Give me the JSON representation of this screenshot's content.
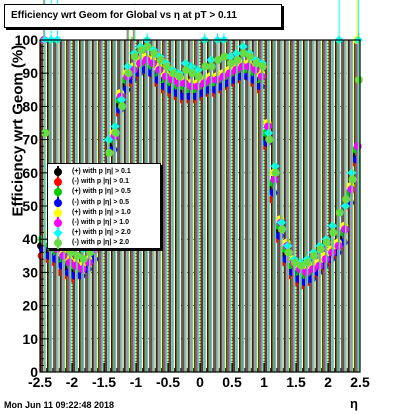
{
  "title": "Efficiency wrt Geom for Global vs   η at pT > 0.11",
  "footer": "Mon Jun 11 09:22:48 2018",
  "chart_data": {
    "type": "scatter",
    "title": "Efficiency wrt Geom for Global vs   η at pT > 0.11",
    "xlabel": "η",
    "ylabel": "Efficiency wrt Geom (%)",
    "xlim": [
      -2.5,
      2.5
    ],
    "ylim": [
      0,
      100
    ],
    "grid": true,
    "legend_position": "left-middle",
    "x_ticks": [
      "-2.5",
      "-2",
      "-1.5",
      "-1",
      "-0.5",
      "0",
      "0.5",
      "1",
      "1.5",
      "2",
      "2.5"
    ],
    "y_ticks": [
      "0",
      "10",
      "20",
      "30",
      "40",
      "50",
      "60",
      "70",
      "80",
      "90",
      "100"
    ],
    "x": [
      -2.45,
      -2.35,
      -2.25,
      -2.15,
      -2.05,
      -1.95,
      -1.85,
      -1.75,
      -1.65,
      -1.55,
      -1.45,
      -1.35,
      -1.25,
      -1.15,
      -1.05,
      -0.95,
      -0.85,
      -0.75,
      -0.65,
      -0.55,
      -0.45,
      -0.35,
      -0.25,
      -0.15,
      -0.05,
      0.05,
      0.15,
      0.25,
      0.35,
      0.45,
      0.55,
      0.65,
      0.75,
      0.85,
      0.95,
      1.05,
      1.15,
      1.25,
      1.35,
      1.45,
      1.55,
      1.65,
      1.75,
      1.85,
      1.95,
      2.05,
      2.15,
      2.25,
      2.35,
      2.45
    ],
    "series": [
      {
        "name": "(+) with p  |η| > 0.1",
        "marker": "black-circle",
        "values": [
          38,
          36,
          35,
          33,
          31,
          30,
          30,
          32,
          35,
          42,
          55,
          68,
          80,
          86,
          88,
          90,
          92,
          91,
          88,
          86,
          85,
          84,
          84,
          83,
          83,
          84,
          85,
          85,
          86,
          87,
          88,
          89,
          90,
          88,
          86,
          70,
          55,
          42,
          35,
          30,
          28,
          27,
          28,
          30,
          32,
          34,
          36,
          40,
          52,
          65
        ]
      },
      {
        "name": "(-) with p  |η| > 0.1",
        "marker": "red-circle",
        "values": [
          35,
          34,
          33,
          30,
          29,
          28,
          29,
          31,
          34,
          40,
          54,
          66,
          78,
          84,
          87,
          89,
          91,
          90,
          87,
          85,
          84,
          83,
          82,
          82,
          82,
          83,
          84,
          84,
          85,
          86,
          87,
          88,
          89,
          87,
          85,
          68,
          52,
          40,
          33,
          29,
          27,
          26,
          27,
          29,
          31,
          33,
          35,
          38,
          50,
          63
        ]
      },
      {
        "name": "(+) with p  |η| > 0.5",
        "marker": "green-circle",
        "values": [
          40,
          38,
          36,
          34,
          33,
          32,
          31,
          33,
          36,
          44,
          57,
          70,
          82,
          88,
          90,
          92,
          93,
          92,
          90,
          88,
          87,
          86,
          86,
          85,
          85,
          86,
          87,
          87,
          88,
          89,
          90,
          91,
          91,
          90,
          88,
          72,
          57,
          44,
          37,
          32,
          30,
          29,
          30,
          31,
          33,
          35,
          37,
          42,
          54,
          67
        ]
      },
      {
        "name": "(-) with p  |η| > 0.5",
        "marker": "blue-circle",
        "values": [
          37,
          35,
          34,
          32,
          30,
          29,
          29,
          31,
          34,
          41,
          54,
          67,
          79,
          85,
          88,
          90,
          91,
          90,
          88,
          86,
          85,
          84,
          83,
          83,
          83,
          84,
          85,
          85,
          86,
          87,
          88,
          89,
          89,
          88,
          86,
          69,
          54,
          41,
          34,
          30,
          28,
          27,
          28,
          30,
          32,
          34,
          36,
          39,
          51,
          64
        ]
      },
      {
        "name": "(+) with p  |η| > 1.0",
        "marker": "yellow-circle",
        "values": [
          100,
          42,
          38,
          36,
          34,
          33,
          32,
          34,
          38,
          46,
          60,
          72,
          84,
          90,
          92,
          94,
          95,
          94,
          92,
          90,
          89,
          88,
          88,
          87,
          87,
          88,
          89,
          89,
          90,
          91,
          92,
          93,
          93,
          92,
          90,
          75,
          60,
          46,
          39,
          34,
          32,
          31,
          32,
          33,
          35,
          37,
          39,
          44,
          56,
          100
        ]
      },
      {
        "name": "(-) with p  |η| > 1.0",
        "marker": "magenta-circle",
        "values": [
          100,
          40,
          37,
          35,
          33,
          32,
          31,
          33,
          37,
          45,
          58,
          71,
          83,
          89,
          91,
          93,
          94,
          93,
          91,
          89,
          88,
          87,
          87,
          86,
          86,
          87,
          88,
          88,
          89,
          90,
          91,
          92,
          92,
          91,
          89,
          74,
          58,
          45,
          38,
          33,
          31,
          30,
          31,
          32,
          34,
          36,
          38,
          43,
          55,
          68
        ]
      },
      {
        "name": "(+) with p  |η| > 2.0",
        "marker": "cyan-diamond",
        "values": [
          100,
          100,
          100,
          44,
          40,
          38,
          37,
          40,
          46,
          62,
          70,
          74,
          82,
          92,
          96,
          98,
          100,
          97,
          95,
          93,
          91,
          90,
          93,
          92,
          91,
          100,
          94,
          100,
          100,
          95,
          96,
          98,
          96,
          94,
          93,
          72,
          62,
          45,
          38,
          34,
          33,
          34,
          36,
          38,
          40,
          44,
          100,
          50,
          60,
          100
        ]
      },
      {
        "name": "(-) with p  |η| > 2.0",
        "marker": "lightgreen-circle",
        "values": [
          72,
          45,
          40,
          38,
          36,
          35,
          34,
          36,
          42,
          58,
          66,
          72,
          80,
          90,
          95,
          97,
          98,
          96,
          94,
          92,
          90,
          89,
          91,
          90,
          89,
          92,
          92,
          94,
          95,
          93,
          94,
          96,
          95,
          93,
          92,
          70,
          60,
          43,
          36,
          33,
          32,
          33,
          35,
          37,
          39,
          42,
          48,
          52,
          58,
          88
        ]
      }
    ]
  }
}
